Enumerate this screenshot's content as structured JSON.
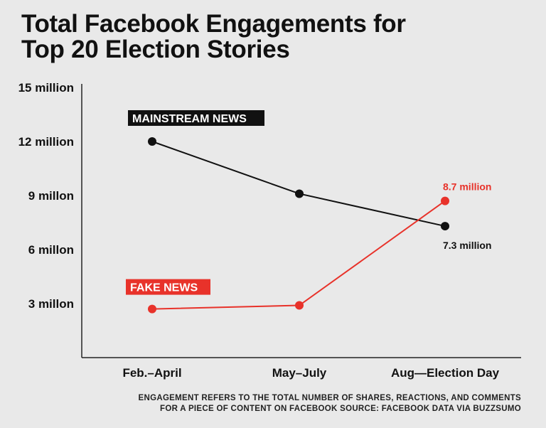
{
  "title_lines": [
    "Total Facebook Engagements for",
    "Top 20 Election Stories"
  ],
  "footnote_lines": [
    "ENGAGEMENT REFERS TO THE TOTAL NUMBER OF SHARES, REACTIONS, AND COMMENTS",
    "FOR A PIECE OF CONTENT ON FACEBOOK SOURCE: FACEBOOK DATA VIA BUZZSUMO"
  ],
  "colors": {
    "mainstream": "#111111",
    "fake": "#e8322a",
    "background": "#e9e9e9"
  },
  "chart_data": {
    "type": "line",
    "title": "Total Facebook Engagements for Top 20 Election Stories",
    "categories": [
      "Feb.–April",
      "May–July",
      "Aug—Election Day"
    ],
    "ylim": [
      0,
      15
    ],
    "y_ticks": [
      {
        "value": 15,
        "label": "15 million"
      },
      {
        "value": 12,
        "label": "12 million"
      },
      {
        "value": 9,
        "label": "9 millon"
      },
      {
        "value": 6,
        "label": "6 millon"
      },
      {
        "value": 3,
        "label": "3 millon"
      }
    ],
    "grid": false,
    "series": [
      {
        "name": "MAINSTREAM NEWS",
        "color": "#111111",
        "values": [
          12.0,
          9.1,
          7.3
        ],
        "end_label": "7.3 million"
      },
      {
        "name": "FAKE NEWS",
        "color": "#e8322a",
        "values": [
          2.7,
          2.9,
          8.7
        ],
        "end_label": "8.7 million"
      }
    ]
  }
}
